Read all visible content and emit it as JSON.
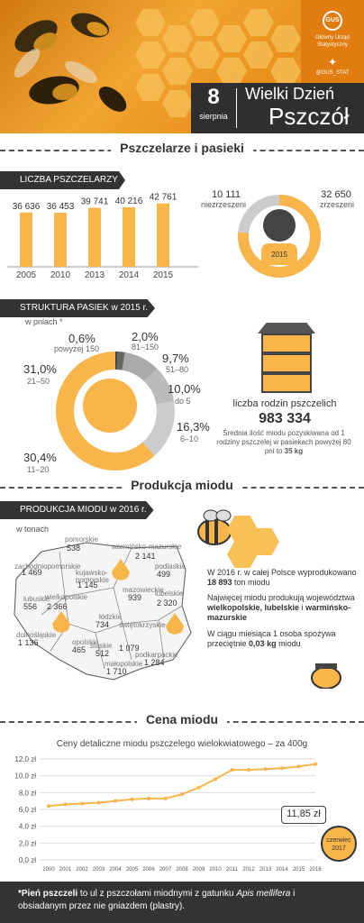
{
  "header": {
    "logo_text": "Główny Urząd Statystyczny",
    "logo_abbr": "GUS",
    "twitter": "@GUS_STAT",
    "date_day": "8",
    "date_month": "sierpnia",
    "title_line1": "Wielki Dzień",
    "title_line2": "Pszczół"
  },
  "section1": {
    "title": "Pszczelarze i pasieki"
  },
  "beekeepers": {
    "label": "LICZBA PSZCZELARZY",
    "chart_data": {
      "type": "bar",
      "categories": [
        "2005",
        "2010",
        "2013",
        "2014",
        "2015"
      ],
      "values": [
        36636,
        36453,
        39741,
        40216,
        42761
      ],
      "value_labels": [
        "36 636",
        "36 453",
        "39 741",
        "40 216",
        "42 761"
      ]
    },
    "unorganized_value": "10 111",
    "unorganized_label": "niezrzeszeni",
    "organized_value": "32 650",
    "organized_label": "zrzeszeni",
    "donut_year": "2015",
    "colors": {
      "organized": "#f7b54a",
      "unorganized": "#cccccc"
    }
  },
  "apiaries": {
    "label": "STRUKTURA PASIEK w 2015 r.",
    "unit": "w pniach *",
    "chart_data": {
      "type": "pie",
      "slices": [
        {
          "label": "powyżej 150",
          "value": 0.6,
          "text": "0,6%"
        },
        {
          "label": "81–150",
          "value": 2.0,
          "text": "2,0%"
        },
        {
          "label": "51–80",
          "value": 9.7,
          "text": "9,7%"
        },
        {
          "label": "do 5",
          "value": 10.0,
          "text": "10,0%"
        },
        {
          "label": "6–10",
          "value": 16.3,
          "text": "16,3%"
        },
        {
          "label": "11–20",
          "value": 30.4,
          "text": "30,4%"
        },
        {
          "label": "21–50",
          "value": 31.0,
          "text": "31,0%"
        }
      ]
    },
    "colonies_label": "liczba rodzin pszczelich",
    "colonies_value": "983 334",
    "avg_text": "Średnia ilość miodu pozyskiwana od 1 rodziny pszczelej w pasiekach powyżej 80 pni to",
    "avg_value": "35 kg"
  },
  "section2": {
    "title": "Produkcja miodu"
  },
  "production": {
    "label": "PRODUKCJA MIODU w 2016 r.",
    "unit": "w tonach",
    "regions": [
      {
        "name": "pomorskie",
        "value": "538"
      },
      {
        "name": "warmińsko-mazurskie",
        "value": "2 141"
      },
      {
        "name": "zachodniopomorskie",
        "value": "1 469"
      },
      {
        "name": "kujawsko-pomorskie",
        "value": "1 145"
      },
      {
        "name": "podlaskie",
        "value": "499"
      },
      {
        "name": "mazowieckie",
        "value": "939"
      },
      {
        "name": "lubuskie",
        "value": "556"
      },
      {
        "name": "wielkopolskie",
        "value": "2 366"
      },
      {
        "name": "łódzkie",
        "value": "734"
      },
      {
        "name": "lubelskie",
        "value": "2 320"
      },
      {
        "name": "dolnośląskie",
        "value": "1 136"
      },
      {
        "name": "opolskie",
        "value": "465"
      },
      {
        "name": "śląskie",
        "value": "512"
      },
      {
        "name": "świętokrzyskie",
        "value": "1 079"
      },
      {
        "name": "małopolskie",
        "value": "1 710"
      },
      {
        "name": "podkarpackie",
        "value": "1 284"
      }
    ],
    "fact1_a": "W 2016 r. w całej Polsce wyprodukowano",
    "fact1_b": "18 893",
    "fact1_c": "ton miodu",
    "fact2_a": "Najwięcej miodu produkują województwa",
    "fact2_b": "wielkopolskie, lubelskie",
    "fact2_c": "i",
    "fact2_d": "warmińsko-mazurskie",
    "fact3_a": "W ciągu miesiąca 1 osoba spożywa przeciętnie",
    "fact3_b": "0,03 kg",
    "fact3_c": "miodu"
  },
  "section3": {
    "title": "Cena miodu"
  },
  "price": {
    "title": "Ceny detaliczne miodu pszczelego wielokwiatowego – za 400g",
    "chart_data": {
      "type": "line",
      "x": [
        "2000",
        "2001",
        "2002",
        "2003",
        "2004",
        "2005",
        "2006",
        "2007",
        "2008",
        "2009",
        "2010",
        "2011",
        "2012",
        "2013",
        "2014",
        "2015",
        "2016"
      ],
      "y": [
        6.4,
        6.6,
        6.7,
        6.8,
        7.0,
        7.2,
        7.3,
        7.3,
        7.8,
        8.6,
        9.6,
        10.7,
        10.7,
        10.8,
        10.9,
        11.1,
        11.4
      ],
      "ylim": [
        0,
        12
      ],
      "yticks": [
        "0,0 zł",
        "2,0 zł",
        "4,0 zł",
        "6,0 zł",
        "8,0 zł",
        "10,0 zł",
        "12,0 zł"
      ]
    },
    "latest_value": "11,85 zł",
    "latest_badge_line1": "czerwiec",
    "latest_badge_line2": "2017"
  },
  "footer": {
    "lead": "*Pień pszczeli",
    "text_a": "to ul z pszczołami miodnymi z gatunku",
    "species": "Apis mellifera",
    "text_b": "i obsiadanym przez nie gniazdem (plastry)."
  }
}
